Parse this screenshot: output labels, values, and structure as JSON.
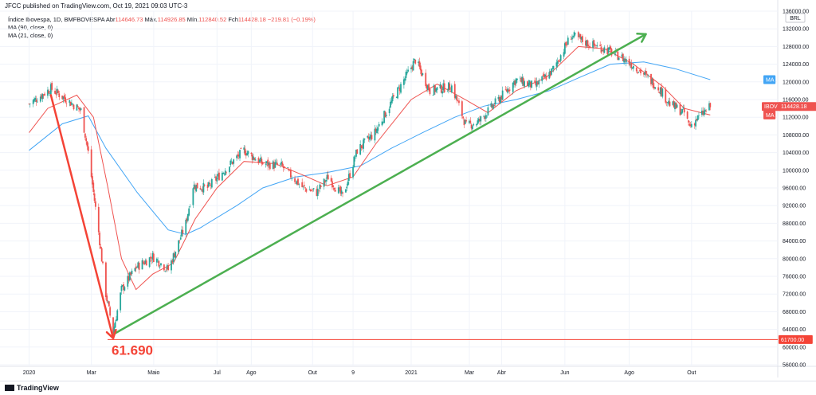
{
  "header": {
    "publisher": "JFCC published on TradingView.com, Oct 19, 2021 09:03 UTC-3"
  },
  "legend": {
    "symbol": "Índice Ibovespa, 1D, BMFBOVESPA",
    "open_label": "Abr",
    "open": "114646.73",
    "high_label": "Máx.",
    "high": "114926.85",
    "low_label": "Mín.",
    "low": "112840.52",
    "close_label": "Fch",
    "close": "114428.18",
    "change": "−219.81 (−0.19%)",
    "ma1": "MA (90, close, 0)",
    "ma2": "MA (21, close, 0)"
  },
  "footer": {
    "brand": "TradingView"
  },
  "colors": {
    "up": "#26a69a",
    "down": "#ef5350",
    "ma90": "#42a5f5",
    "ma21": "#ef5350",
    "uptrend": "#4caf50",
    "downtrend": "#f44336",
    "grid": "#f0f3fa"
  },
  "chart_data": {
    "type": "candlestick",
    "currency": "BRL",
    "ylim": [
      56000,
      136000
    ],
    "y_ticks": [
      "136000.00",
      "132000.00",
      "128000.00",
      "124000.00",
      "120000.00",
      "116000.00",
      "112000.00",
      "108000.00",
      "104000.00",
      "100000.00",
      "96000.00",
      "92000.00",
      "88000.00",
      "84000.00",
      "80000.00",
      "76000.00",
      "72000.00",
      "68000.00",
      "64000.00",
      "60000.00",
      "56000.00"
    ],
    "x_ticks": [
      "2020",
      "Mar",
      "Maio",
      "Jul",
      "Ago",
      "Out",
      "9",
      "2021",
      "Mar",
      "Abr",
      "Jun",
      "Ago",
      "Out"
    ],
    "price_labels": {
      "last": "114428.18",
      "last_tag": "IBOV",
      "ma90_tag": "MA",
      "ma21_tag": "MA",
      "support": "61700.00"
    },
    "annotation": "61.690",
    "series": [
      {
        "name": "Índice Ibovespa",
        "kind": "close_path",
        "points": [
          {
            "x": "2020-01-02",
            "y": 115000
          },
          {
            "x": "2020-01-23",
            "y": 118500
          },
          {
            "x": "2020-02-10",
            "y": 115500
          },
          {
            "x": "2020-02-21",
            "y": 113500
          },
          {
            "x": "2020-02-28",
            "y": 104000
          },
          {
            "x": "2020-03-09",
            "y": 86000
          },
          {
            "x": "2020-03-16",
            "y": 72000
          },
          {
            "x": "2020-03-23",
            "y": 63500
          },
          {
            "x": "2020-03-31",
            "y": 73000
          },
          {
            "x": "2020-04-14",
            "y": 78000
          },
          {
            "x": "2020-04-30",
            "y": 80500
          },
          {
            "x": "2020-05-15",
            "y": 77500
          },
          {
            "x": "2020-06-01",
            "y": 88000
          },
          {
            "x": "2020-06-08",
            "y": 96500
          },
          {
            "x": "2020-06-22",
            "y": 96000
          },
          {
            "x": "2020-07-10",
            "y": 100500
          },
          {
            "x": "2020-07-27",
            "y": 104500
          },
          {
            "x": "2020-08-14",
            "y": 101500
          },
          {
            "x": "2020-09-01",
            "y": 101000
          },
          {
            "x": "2020-09-22",
            "y": 96000
          },
          {
            "x": "2020-10-05",
            "y": 95000
          },
          {
            "x": "2020-10-16",
            "y": 98500
          },
          {
            "x": "2020-10-30",
            "y": 94000
          },
          {
            "x": "2020-11-13",
            "y": 104500
          },
          {
            "x": "2020-11-30",
            "y": 108500
          },
          {
            "x": "2020-12-15",
            "y": 115000
          },
          {
            "x": "2021-01-08",
            "y": 125000
          },
          {
            "x": "2021-01-22",
            "y": 118000
          },
          {
            "x": "2021-02-12",
            "y": 119000
          },
          {
            "x": "2021-02-26",
            "y": 110000
          },
          {
            "x": "2021-03-10",
            "y": 111000
          },
          {
            "x": "2021-03-31",
            "y": 116500
          },
          {
            "x": "2021-04-15",
            "y": 120500
          },
          {
            "x": "2021-05-03",
            "y": 119000
          },
          {
            "x": "2021-05-20",
            "y": 122500
          },
          {
            "x": "2021-06-07",
            "y": 130500
          },
          {
            "x": "2021-06-25",
            "y": 128500
          },
          {
            "x": "2021-07-09",
            "y": 127500
          },
          {
            "x": "2021-07-26",
            "y": 125500
          },
          {
            "x": "2021-08-10",
            "y": 123000
          },
          {
            "x": "2021-08-31",
            "y": 118500
          },
          {
            "x": "2021-09-10",
            "y": 115000
          },
          {
            "x": "2021-09-24",
            "y": 113000
          },
          {
            "x": "2021-09-29",
            "y": 110000
          },
          {
            "x": "2021-10-08",
            "y": 112000
          },
          {
            "x": "2021-10-19",
            "y": 114400
          }
        ]
      },
      {
        "name": "MA (90, close, 0)",
        "kind": "line",
        "points": [
          {
            "x": "2020-01-02",
            "y": 104500
          },
          {
            "x": "2020-02-03",
            "y": 110500
          },
          {
            "x": "2020-02-28",
            "y": 112300
          },
          {
            "x": "2020-03-16",
            "y": 105000
          },
          {
            "x": "2020-04-15",
            "y": 95000
          },
          {
            "x": "2020-05-15",
            "y": 86500
          },
          {
            "x": "2020-06-01",
            "y": 85500
          },
          {
            "x": "2020-06-15",
            "y": 87000
          },
          {
            "x": "2020-07-20",
            "y": 92000
          },
          {
            "x": "2020-08-14",
            "y": 96000
          },
          {
            "x": "2020-09-15",
            "y": 98500
          },
          {
            "x": "2020-10-15",
            "y": 99500
          },
          {
            "x": "2020-11-16",
            "y": 101000
          },
          {
            "x": "2020-12-16",
            "y": 105000
          },
          {
            "x": "2021-01-15",
            "y": 108500
          },
          {
            "x": "2021-02-15",
            "y": 112000
          },
          {
            "x": "2021-03-15",
            "y": 114500
          },
          {
            "x": "2021-04-15",
            "y": 116000
          },
          {
            "x": "2021-05-17",
            "y": 118000
          },
          {
            "x": "2021-06-15",
            "y": 121000
          },
          {
            "x": "2021-07-15",
            "y": 124000
          },
          {
            "x": "2021-08-16",
            "y": 124500
          },
          {
            "x": "2021-09-15",
            "y": 123000
          },
          {
            "x": "2021-10-19",
            "y": 120500
          }
        ]
      },
      {
        "name": "MA (21, close, 0)",
        "kind": "line",
        "points": [
          {
            "x": "2020-01-02",
            "y": 108500
          },
          {
            "x": "2020-01-20",
            "y": 114000
          },
          {
            "x": "2020-02-17",
            "y": 117000
          },
          {
            "x": "2020-03-04",
            "y": 112000
          },
          {
            "x": "2020-03-18",
            "y": 96000
          },
          {
            "x": "2020-03-31",
            "y": 80000
          },
          {
            "x": "2020-04-14",
            "y": 73000
          },
          {
            "x": "2020-04-30",
            "y": 76500
          },
          {
            "x": "2020-05-20",
            "y": 79000
          },
          {
            "x": "2020-06-10",
            "y": 89000
          },
          {
            "x": "2020-07-01",
            "y": 96000
          },
          {
            "x": "2020-07-27",
            "y": 102000
          },
          {
            "x": "2020-08-26",
            "y": 101500
          },
          {
            "x": "2020-09-21",
            "y": 99000
          },
          {
            "x": "2020-10-15",
            "y": 96500
          },
          {
            "x": "2020-11-09",
            "y": 98500
          },
          {
            "x": "2020-12-01",
            "y": 106000
          },
          {
            "x": "2021-01-04",
            "y": 116000
          },
          {
            "x": "2021-01-29",
            "y": 119500
          },
          {
            "x": "2021-02-25",
            "y": 116000
          },
          {
            "x": "2021-03-19",
            "y": 113000
          },
          {
            "x": "2021-04-15",
            "y": 118000
          },
          {
            "x": "2021-05-14",
            "y": 121000
          },
          {
            "x": "2021-06-14",
            "y": 128000
          },
          {
            "x": "2021-07-09",
            "y": 127500
          },
          {
            "x": "2021-08-06",
            "y": 124000
          },
          {
            "x": "2021-09-03",
            "y": 119000
          },
          {
            "x": "2021-09-24",
            "y": 114000
          },
          {
            "x": "2021-10-19",
            "y": 112500
          }
        ]
      }
    ],
    "trendlines": [
      {
        "name": "uptrend",
        "from": {
          "x": "2020-03-24",
          "y": 63000
        },
        "to": {
          "x": "2021-08-18",
          "y": 130800
        }
      },
      {
        "name": "downtrend",
        "from": {
          "x": "2020-01-23",
          "y": 117000
        },
        "to": {
          "x": "2020-03-23",
          "y": 62000
        }
      }
    ],
    "support_level": 61700
  }
}
